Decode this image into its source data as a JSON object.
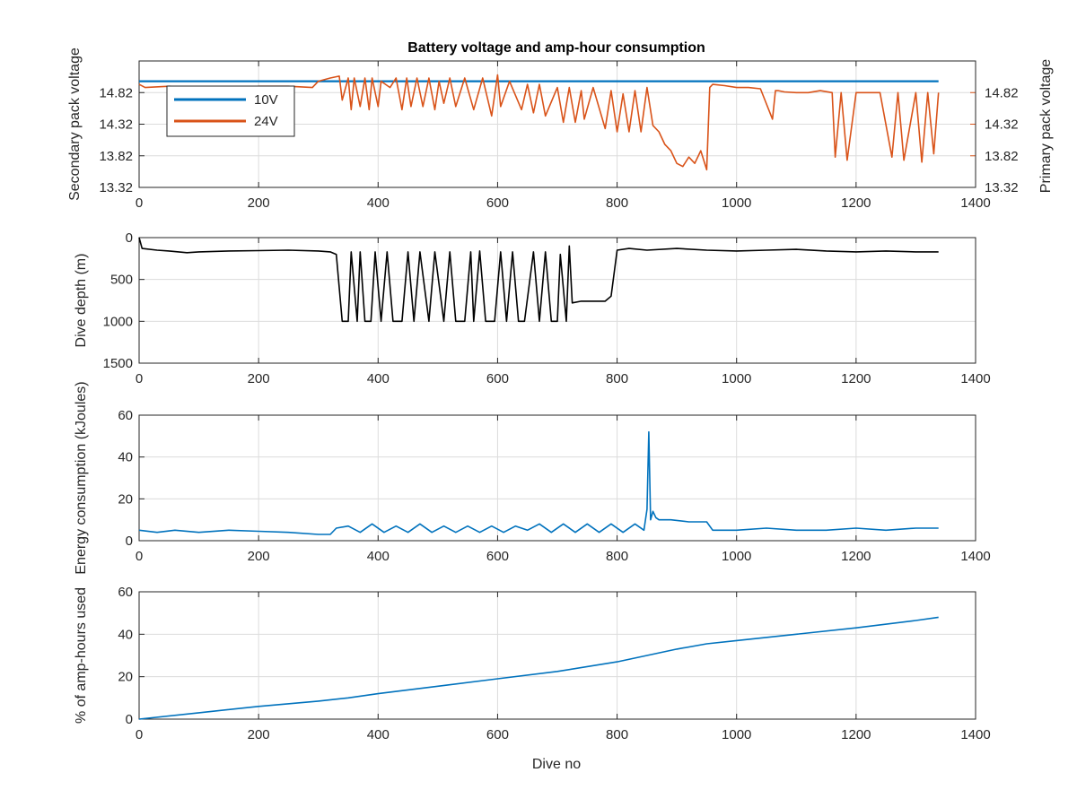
{
  "figure": {
    "title": "Battery voltage and amp-hour consumption",
    "xlabel": "Dive no",
    "colors": {
      "blue": "#0072bd",
      "orange": "#d95319",
      "black": "#000000"
    }
  },
  "chart_data": [
    {
      "type": "line",
      "title": "Battery voltage and amp-hour consumption",
      "xlabel": "",
      "ylabel": "Secondary pack voltage",
      "ylabel_right": "Primary pack voltage",
      "xlim": [
        0,
        1400
      ],
      "ylim": [
        13.32,
        15.32
      ],
      "xticks": [
        "0",
        "200",
        "400",
        "600",
        "800",
        "1000",
        "1200",
        "1400"
      ],
      "yticks": [
        "13.32",
        "13.82",
        "14.32",
        "14.82"
      ],
      "yticks_right": [
        "13.32",
        "13.82",
        "14.32",
        "14.82"
      ],
      "legend_position": "top-left",
      "series": [
        {
          "name": "10V",
          "axis": "left",
          "color": "#0072bd",
          "x": [
            0,
            1338
          ],
          "y": [
            15.0,
            15.0
          ]
        },
        {
          "name": "24V",
          "axis": "right",
          "color": "#d95319",
          "x": [
            0,
            10,
            50,
            100,
            150,
            200,
            250,
            290,
            300,
            320,
            335,
            340,
            350,
            355,
            360,
            370,
            378,
            385,
            390,
            400,
            405,
            420,
            430,
            440,
            448,
            455,
            465,
            475,
            485,
            495,
            502,
            510,
            520,
            530,
            545,
            560,
            575,
            590,
            600,
            605,
            620,
            640,
            650,
            660,
            670,
            680,
            700,
            710,
            720,
            730,
            740,
            745,
            760,
            780,
            790,
            800,
            810,
            820,
            830,
            840,
            850,
            860,
            870,
            880,
            890,
            900,
            910,
            920,
            930,
            940,
            950,
            955,
            960,
            980,
            1000,
            1020,
            1040,
            1060,
            1065,
            1070,
            1080,
            1100,
            1120,
            1140,
            1160,
            1165,
            1175,
            1185,
            1200,
            1220,
            1240,
            1260,
            1270,
            1280,
            1300,
            1310,
            1320,
            1330,
            1338
          ],
          "y": [
            14.95,
            14.9,
            14.92,
            14.9,
            14.88,
            14.92,
            14.92,
            14.9,
            15.0,
            15.05,
            15.08,
            14.7,
            15.05,
            14.55,
            15.05,
            14.6,
            15.05,
            14.55,
            15.05,
            14.6,
            15.0,
            14.9,
            15.05,
            14.55,
            15.05,
            14.6,
            15.05,
            14.6,
            15.05,
            14.55,
            15.0,
            14.65,
            15.05,
            14.6,
            15.05,
            14.55,
            15.05,
            14.45,
            15.1,
            14.6,
            15.0,
            14.55,
            14.95,
            14.5,
            14.95,
            14.45,
            14.9,
            14.35,
            14.9,
            14.35,
            14.85,
            14.4,
            14.9,
            14.25,
            14.85,
            14.2,
            14.8,
            14.2,
            14.85,
            14.2,
            14.9,
            14.3,
            14.2,
            14.0,
            13.9,
            13.7,
            13.65,
            13.8,
            13.7,
            13.9,
            13.6,
            14.9,
            14.95,
            14.93,
            14.9,
            14.9,
            14.88,
            14.4,
            14.85,
            14.85,
            14.83,
            14.82,
            14.82,
            14.85,
            14.82,
            13.8,
            14.82,
            13.75,
            14.82,
            14.82,
            14.82,
            13.8,
            14.82,
            13.75,
            14.82,
            13.72,
            14.82,
            13.85,
            14.82
          ]
        }
      ]
    },
    {
      "type": "line",
      "title": "",
      "xlabel": "",
      "ylabel": "Dive depth (m)",
      "xlim": [
        0,
        1400
      ],
      "ylim": [
        1500,
        0
      ],
      "xticks": [
        "0",
        "200",
        "400",
        "600",
        "800",
        "1000",
        "1200",
        "1400"
      ],
      "yticks": [
        "0",
        "500",
        "1000",
        "1500"
      ],
      "series": [
        {
          "name": "depth",
          "color": "#000000",
          "x": [
            0,
            5,
            30,
            50,
            80,
            100,
            150,
            200,
            250,
            300,
            320,
            330,
            340,
            350,
            355,
            365,
            370,
            378,
            388,
            395,
            405,
            415,
            425,
            440,
            450,
            460,
            470,
            485,
            495,
            500,
            510,
            520,
            530,
            545,
            555,
            560,
            570,
            580,
            595,
            605,
            615,
            625,
            635,
            645,
            660,
            670,
            680,
            690,
            700,
            705,
            715,
            720,
            725,
            740,
            760,
            780,
            790,
            800,
            820,
            850,
            900,
            950,
            1000,
            1050,
            1100,
            1150,
            1200,
            1250,
            1300,
            1338
          ],
          "y": [
            0,
            130,
            150,
            160,
            180,
            170,
            160,
            155,
            150,
            160,
            170,
            200,
            1000,
            1000,
            170,
            1000,
            170,
            1000,
            1000,
            170,
            1000,
            170,
            1000,
            1000,
            170,
            1000,
            170,
            1000,
            170,
            450,
            1000,
            170,
            1000,
            1000,
            170,
            1000,
            160,
            1000,
            1000,
            170,
            1000,
            170,
            1000,
            1000,
            170,
            1000,
            170,
            1000,
            1000,
            200,
            1000,
            100,
            780,
            760,
            760,
            760,
            700,
            150,
            130,
            150,
            130,
            150,
            160,
            150,
            140,
            160,
            170,
            160,
            170,
            170
          ]
        }
      ]
    },
    {
      "type": "line",
      "title": "",
      "xlabel": "",
      "ylabel": "Energy consumption (kJoules)",
      "xlim": [
        0,
        1400
      ],
      "ylim": [
        0,
        60
      ],
      "xticks": [
        "0",
        "200",
        "400",
        "600",
        "800",
        "1000",
        "1200",
        "1400"
      ],
      "yticks": [
        "0",
        "20",
        "40",
        "60"
      ],
      "series": [
        {
          "name": "energy",
          "color": "#0072bd",
          "x": [
            0,
            30,
            60,
            100,
            150,
            200,
            250,
            300,
            320,
            330,
            350,
            370,
            390,
            410,
            430,
            450,
            470,
            490,
            510,
            530,
            550,
            570,
            590,
            610,
            630,
            650,
            670,
            690,
            710,
            730,
            750,
            770,
            790,
            810,
            830,
            845,
            850,
            853,
            856,
            860,
            865,
            870,
            890,
            920,
            950,
            960,
            1000,
            1050,
            1100,
            1150,
            1200,
            1250,
            1300,
            1338
          ],
          "y": [
            5,
            4,
            5,
            4,
            5,
            4.5,
            4,
            3,
            3,
            6,
            7,
            4,
            8,
            4,
            7,
            4,
            8,
            4,
            7,
            4,
            7,
            4,
            7,
            4,
            7,
            5,
            8,
            4,
            8,
            4,
            8,
            4,
            8,
            4,
            8,
            5,
            15,
            52,
            10,
            14,
            11,
            10,
            10,
            9,
            9,
            5,
            5,
            6,
            5,
            5,
            6,
            5,
            6,
            6
          ]
        }
      ]
    },
    {
      "type": "line",
      "title": "",
      "xlabel": "Dive no",
      "ylabel": "% of amp-hours used",
      "xlim": [
        0,
        1400
      ],
      "ylim": [
        0,
        60
      ],
      "xticks": [
        "0",
        "200",
        "400",
        "600",
        "800",
        "1000",
        "1200",
        "1400"
      ],
      "yticks": [
        "0",
        "20",
        "40",
        "60"
      ],
      "series": [
        {
          "name": "amp-hours",
          "color": "#0072bd",
          "x": [
            0,
            100,
            200,
            300,
            350,
            400,
            500,
            600,
            700,
            800,
            850,
            900,
            950,
            1000,
            1100,
            1200,
            1300,
            1338
          ],
          "y": [
            0,
            3,
            6,
            8.5,
            10,
            12,
            15.5,
            19,
            22.5,
            27,
            30,
            33,
            35.5,
            37,
            40,
            43,
            46.5,
            48
          ]
        }
      ]
    }
  ]
}
